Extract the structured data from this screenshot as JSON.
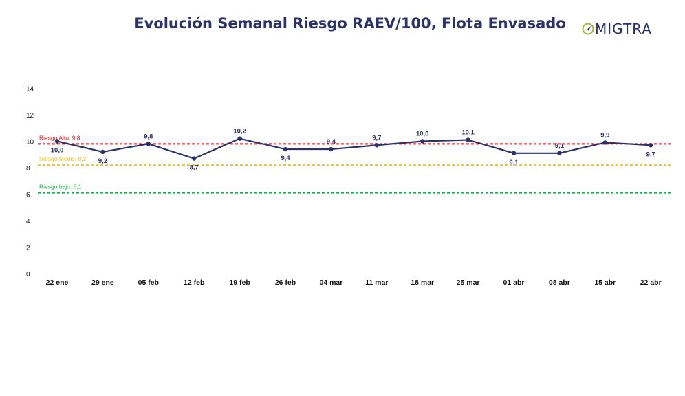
{
  "title": "Evolución Semanal Riesgo RAEV/100, Flota Envasado",
  "logo": {
    "text": "MIGTRA",
    "icon": "compass-circle-icon",
    "accent": "#a3b341",
    "color": "#2b3366"
  },
  "chart_data": {
    "type": "line",
    "title": "Evolución Semanal Riesgo RAEV/100, Flota Envasado",
    "categories": [
      "22 ene",
      "29 ene",
      "05 feb",
      "12 feb",
      "19 feb",
      "26 feb",
      "04 mar",
      "11 mar",
      "18 mar",
      "25 mar",
      "01 abr",
      "08 abr",
      "15 abr",
      "22 abr"
    ],
    "series": [
      {
        "values": [
          10.0,
          9.2,
          9.8,
          8.7,
          10.2,
          9.4,
          9.4,
          9.7,
          10.0,
          10.1,
          9.1,
          9.1,
          9.9,
          9.7
        ],
        "labels": [
          "10,0",
          "9,2",
          "9,8",
          "8,7",
          "10,2",
          "9,4",
          "9,4",
          "9,7",
          "10,0",
          "10,1",
          "9,1",
          "9,1",
          "9,9",
          "9,7"
        ],
        "color": "#2b3366"
      }
    ],
    "yticks": [
      "0",
      "2",
      "4",
      "6",
      "8",
      "10",
      "12",
      "14"
    ],
    "ylim": [
      0,
      14
    ],
    "grid": false,
    "reference_lines": [
      {
        "label": "Riesgo Alto: 9,8",
        "value": 9.8,
        "color": "#e8141c"
      },
      {
        "label": "Riesgo Medio: 8,2",
        "value": 8.2,
        "color": "#f2c21b"
      },
      {
        "label": "Riesgo bajo: 6,1",
        "value": 6.1,
        "color": "#16b24a"
      }
    ]
  }
}
